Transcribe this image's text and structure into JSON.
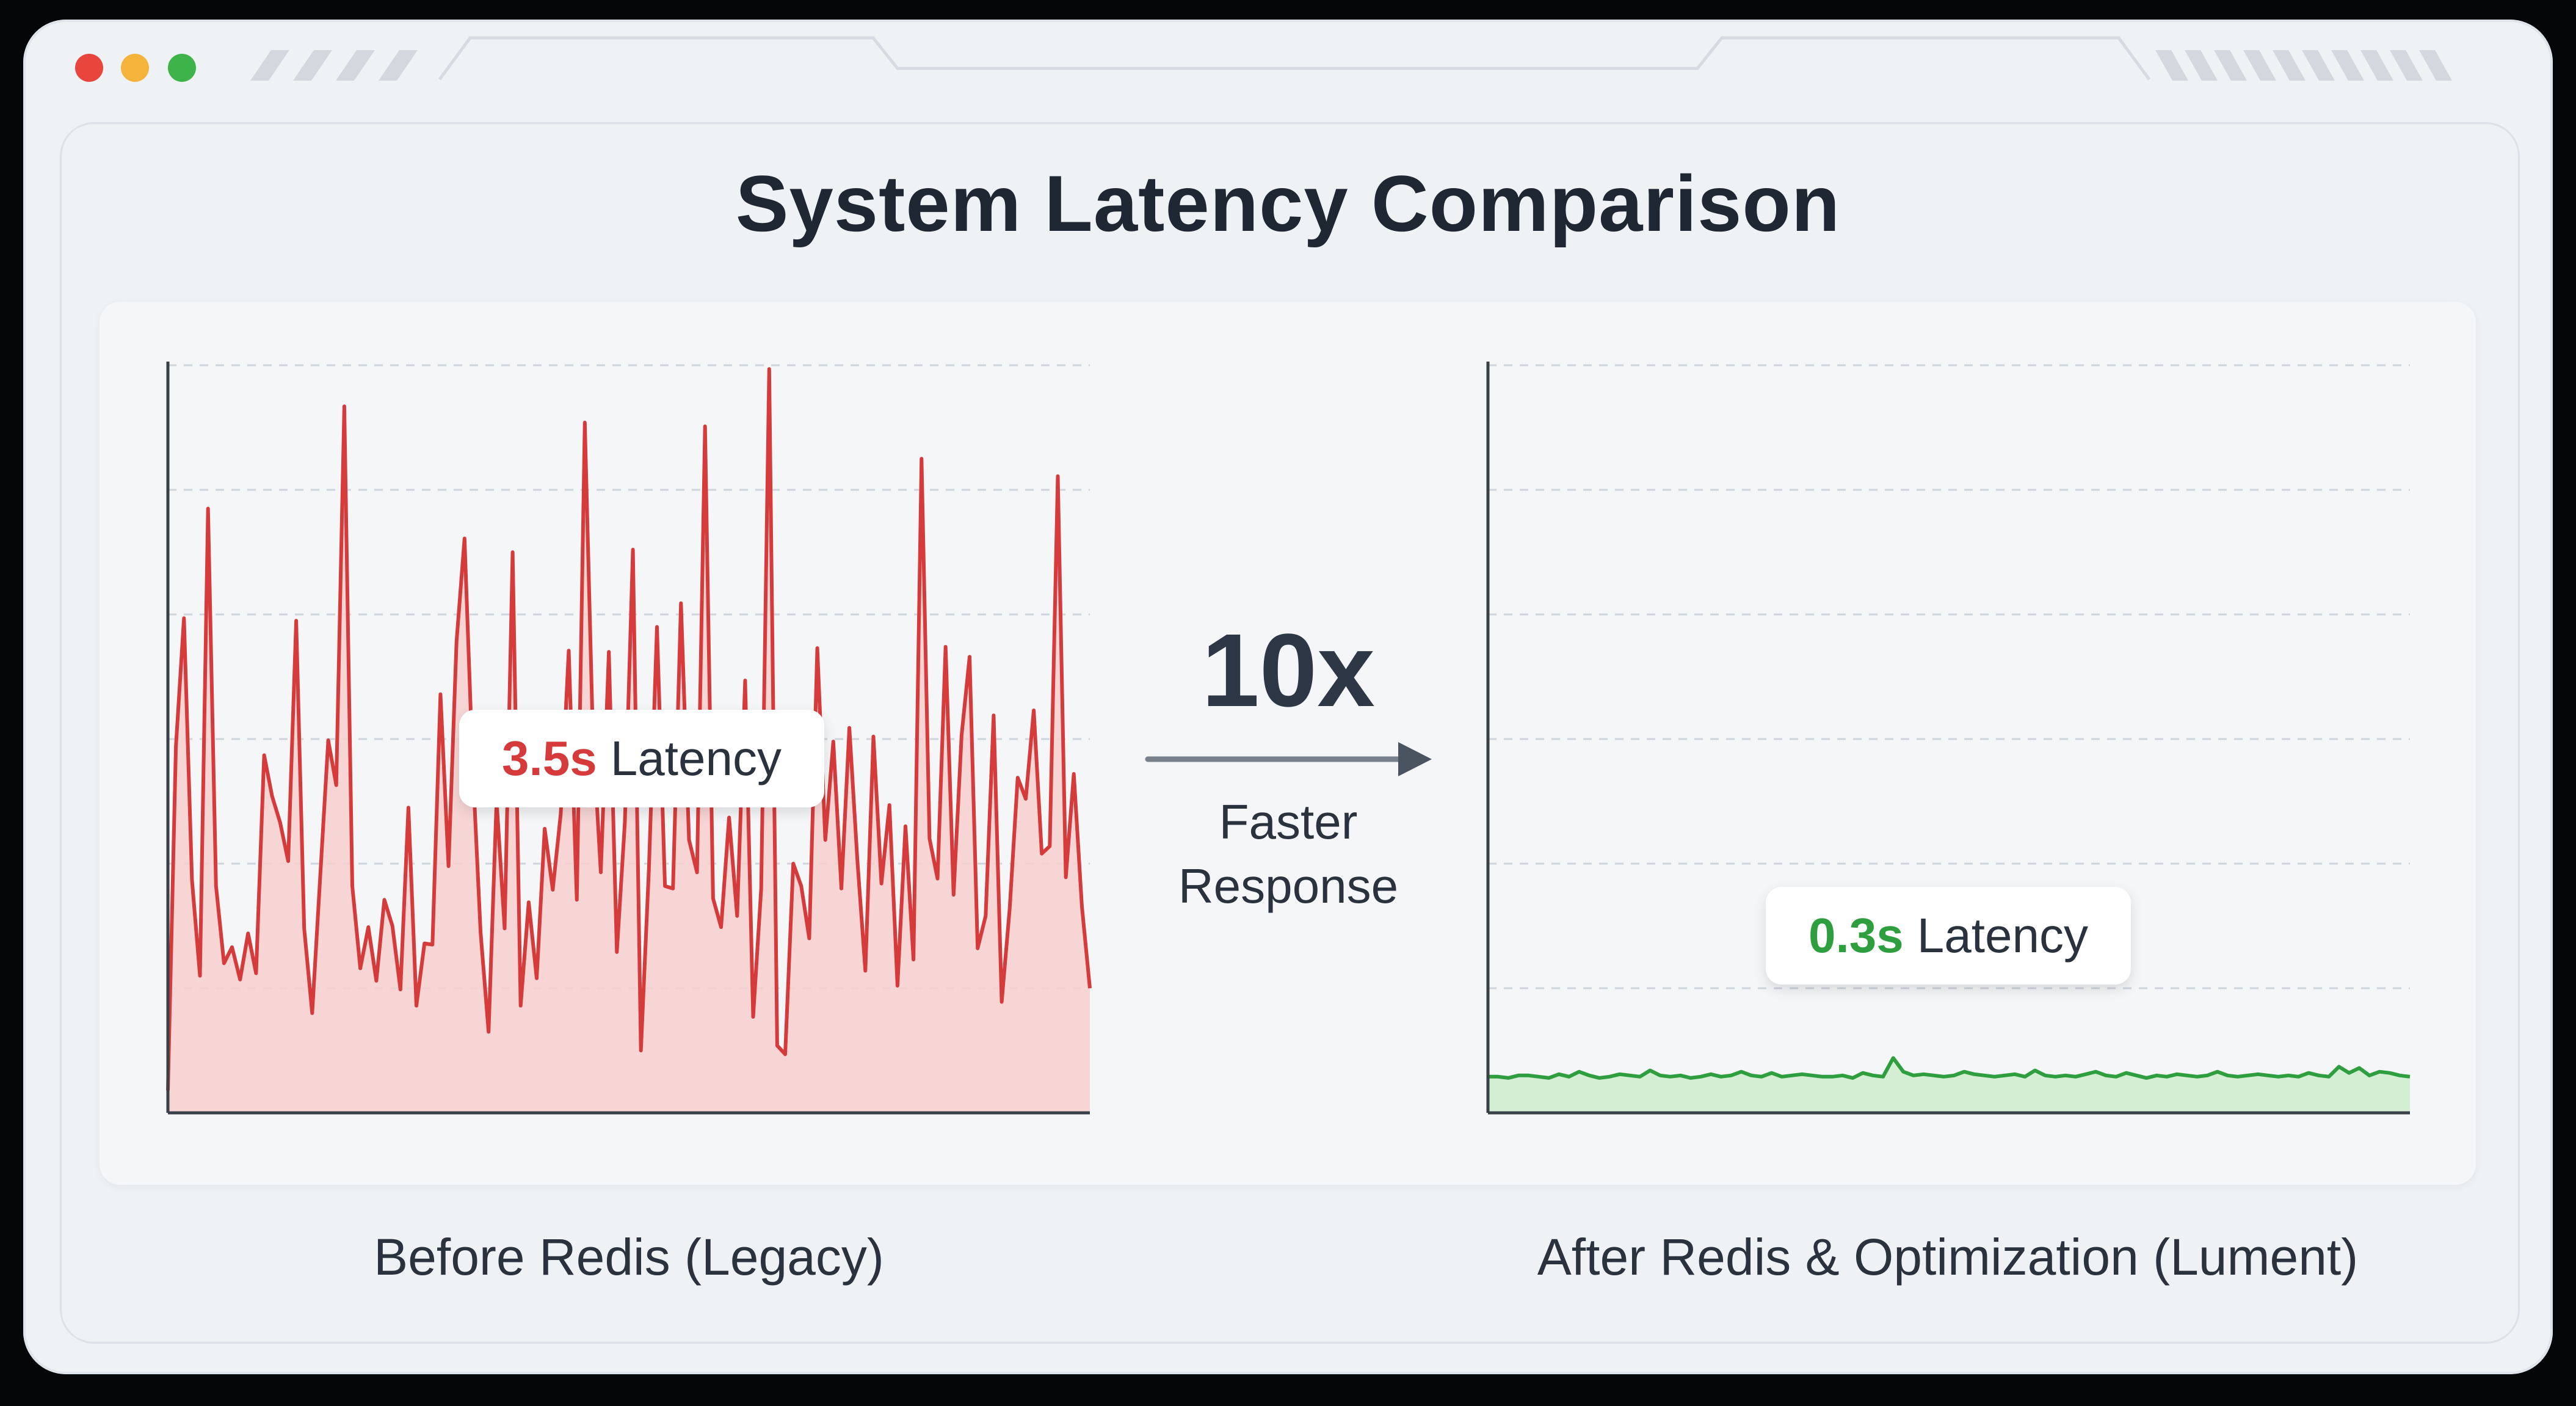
{
  "title": "System Latency Comparison",
  "window": {
    "dots": [
      "#e8453c",
      "#f4b33a",
      "#3db34a"
    ]
  },
  "comparison": {
    "multiplier": "10x",
    "subtitle_line1": "Faster",
    "subtitle_line2": "Response"
  },
  "colors": {
    "before": "#d63b3b",
    "before_fill": "#f7cfcf",
    "after": "#2e9e3e",
    "after_fill": "#cdeccd"
  },
  "chart_data": [
    {
      "type": "area",
      "series": [
        {
          "values": [
            0.18,
            2.94,
            3.97,
            1.87,
            1.1,
            4.85,
            1.82,
            1.2,
            1.33,
            1.07,
            1.44,
            1.12,
            2.87,
            2.54,
            2.33,
            2.02,
            3.95,
            1.48,
            0.8,
            1.9,
            2.99,
            2.63,
            5.67,
            1.82,
            1.16,
            1.49,
            1.06,
            1.71,
            1.5,
            0.99,
            2.45,
            0.86,
            1.36,
            1.35,
            3.36,
            1.98,
            3.78,
            4.61,
            2.81,
            1.45,
            0.65,
            2.51,
            1.48,
            4.5,
            0.86,
            1.69,
            1.08,
            2.28,
            1.79,
            2.4,
            3.71,
            1.71,
            5.54,
            3.05,
            1.93,
            3.7,
            1.29,
            2.33,
            4.52,
            0.5,
            1.96,
            3.9,
            1.82,
            1.8,
            4.09,
            2.19,
            1.93,
            5.51,
            1.72,
            1.49,
            2.37,
            1.58,
            3.47,
            0.77,
            1.8,
            5.97,
            0.54,
            0.47,
            2.0,
            1.82,
            1.4,
            3.73,
            2.19,
            2.98,
            1.8,
            3.09,
            2.03,
            1.14,
            3.02,
            1.84,
            2.47,
            1.02,
            2.3,
            1.23,
            5.25,
            2.2,
            1.88,
            3.74,
            1.75,
            3.03,
            3.66,
            1.32,
            1.58,
            3.19,
            0.89,
            1.64,
            2.69,
            2.52,
            3.23,
            2.08,
            2.14,
            5.11,
            1.89,
            2.72,
            1.66,
            1.0
          ]
        }
      ],
      "ylim": [
        0,
        6
      ],
      "tooltip": {
        "value": "3.5s",
        "text": "Latency"
      },
      "caption": "Before Redis (Legacy)"
    },
    {
      "type": "area",
      "series": [
        {
          "values": [
            0.29,
            0.29,
            0.28,
            0.3,
            0.3,
            0.29,
            0.28,
            0.31,
            0.29,
            0.33,
            0.3,
            0.28,
            0.29,
            0.31,
            0.3,
            0.29,
            0.34,
            0.3,
            0.29,
            0.3,
            0.28,
            0.29,
            0.31,
            0.29,
            0.3,
            0.33,
            0.3,
            0.29,
            0.32,
            0.29,
            0.3,
            0.31,
            0.3,
            0.29,
            0.29,
            0.3,
            0.28,
            0.32,
            0.3,
            0.29,
            0.44,
            0.33,
            0.3,
            0.31,
            0.3,
            0.29,
            0.3,
            0.33,
            0.31,
            0.3,
            0.29,
            0.3,
            0.31,
            0.29,
            0.34,
            0.3,
            0.29,
            0.3,
            0.29,
            0.31,
            0.33,
            0.3,
            0.29,
            0.32,
            0.3,
            0.28,
            0.3,
            0.29,
            0.31,
            0.3,
            0.29,
            0.3,
            0.33,
            0.3,
            0.29,
            0.3,
            0.31,
            0.3,
            0.29,
            0.3,
            0.29,
            0.32,
            0.3,
            0.29,
            0.37,
            0.32,
            0.36,
            0.3,
            0.33,
            0.32,
            0.3,
            0.29
          ]
        }
      ],
      "ylim": [
        0,
        6
      ],
      "tooltip": {
        "value": "0.3s",
        "text": "Latency"
      },
      "caption": "After Redis & Optimization (Lument)"
    }
  ]
}
